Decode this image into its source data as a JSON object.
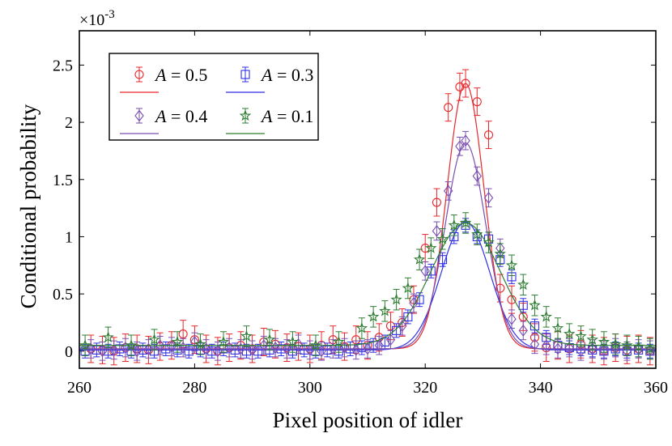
{
  "chart_data": {
    "type": "scatter",
    "xlabel": "Pixel position of idler",
    "ylabel": "Conditional probability",
    "exponent": {
      "base": "×10",
      "power": "-3"
    },
    "xlim": [
      260,
      360
    ],
    "ylim": [
      -0.15,
      2.8
    ],
    "xticks": [
      260,
      280,
      300,
      320,
      340,
      360
    ],
    "xtick_labels": [
      "260",
      "280",
      "300",
      "320",
      "340",
      "360"
    ],
    "yticks": [
      0,
      0.5,
      1,
      1.5,
      2,
      2.5
    ],
    "ytick_labels": [
      "0",
      "0.5",
      "1",
      "1.5",
      "2",
      "2.5"
    ],
    "legend_position": "top-left",
    "series": [
      {
        "name": "A = 0.5",
        "symbol": "A",
        "eq": " = 0.5",
        "color": "#e8262a",
        "marker": "circle",
        "fit": {
          "amplitude": 2.32,
          "center": 327,
          "sigma": 3.2,
          "offset": 0.02
        },
        "x": [
          262,
          264,
          266,
          268,
          270,
          272,
          274,
          276,
          278,
          280,
          282,
          284,
          286,
          288,
          290,
          292,
          294,
          296,
          298,
          300,
          302,
          304,
          306,
          308,
          310,
          312,
          314,
          316,
          318,
          320,
          322,
          324,
          326,
          327,
          329,
          331,
          333,
          335,
          337,
          339,
          341,
          343,
          345,
          347,
          349,
          351,
          353,
          355,
          357,
          359
        ],
        "y": [
          0.02,
          0.01,
          0.0,
          0.03,
          0.02,
          0.01,
          0.04,
          0.05,
          0.15,
          0.1,
          0.02,
          0.0,
          0.03,
          0.05,
          0.02,
          0.08,
          0.06,
          0.03,
          0.04,
          0.02,
          0.05,
          0.1,
          0.04,
          0.1,
          0.05,
          0.12,
          0.22,
          0.25,
          0.45,
          0.9,
          1.3,
          2.13,
          2.31,
          2.34,
          2.18,
          1.89,
          0.55,
          0.45,
          0.3,
          0.12,
          0.03,
          0.05,
          0.02,
          0.06,
          0.02,
          0.0,
          0.03,
          0.01,
          0.02,
          0.0
        ],
        "err": 0.12
      },
      {
        "name": "A = 0.3",
        "symbol": "A",
        "eq": " = 0.3",
        "color": "#2f2fe6",
        "marker": "square",
        "fit": {
          "amplitude": 1.12,
          "center": 327,
          "sigma": 4.2,
          "offset": 0.01
        },
        "x": [
          261,
          263,
          265,
          267,
          269,
          271,
          273,
          275,
          277,
          279,
          281,
          283,
          285,
          287,
          289,
          291,
          293,
          295,
          297,
          299,
          301,
          303,
          305,
          307,
          309,
          311,
          313,
          315,
          317,
          319,
          321,
          323,
          325,
          327,
          329,
          331,
          333,
          335,
          337,
          339,
          341,
          343,
          345,
          347,
          349,
          351,
          353,
          355,
          357,
          359
        ],
        "y": [
          0.0,
          0.01,
          0.0,
          0.02,
          0.0,
          0.01,
          0.0,
          0.02,
          0.01,
          0.0,
          0.01,
          0.0,
          0.02,
          0.01,
          0.0,
          0.0,
          0.01,
          0.02,
          0.0,
          0.01,
          0.0,
          0.01,
          0.0,
          0.02,
          0.03,
          0.05,
          0.08,
          0.18,
          0.3,
          0.45,
          0.7,
          0.8,
          1.0,
          1.1,
          1.0,
          0.98,
          0.8,
          0.65,
          0.4,
          0.22,
          0.12,
          0.05,
          0.03,
          0.02,
          0.01,
          0.0,
          0.02,
          0.0,
          0.01,
          0.0
        ],
        "err": 0.06
      },
      {
        "name": "A = 0.4",
        "symbol": "A",
        "eq": " = 0.4",
        "color": "#7a4fb0",
        "marker": "diamond",
        "fit": {
          "amplitude": 1.8,
          "center": 327,
          "sigma": 3.5,
          "offset": 0.02
        },
        "x": [
          262,
          264,
          266,
          268,
          270,
          272,
          274,
          276,
          278,
          280,
          282,
          284,
          286,
          288,
          290,
          292,
          294,
          296,
          298,
          300,
          302,
          304,
          306,
          308,
          310,
          312,
          314,
          316,
          318,
          320,
          322,
          324,
          326,
          327,
          329,
          331,
          333,
          335,
          337,
          339,
          341,
          343,
          345,
          347,
          349,
          351,
          353,
          355,
          357,
          359
        ],
        "y": [
          0.02,
          0.0,
          0.01,
          0.03,
          0.0,
          0.02,
          0.05,
          0.04,
          0.03,
          0.08,
          0.02,
          0.0,
          0.03,
          0.02,
          0.01,
          0.05,
          0.03,
          0.02,
          0.06,
          0.01,
          0.0,
          0.02,
          0.03,
          0.01,
          0.02,
          0.05,
          0.1,
          0.22,
          0.42,
          0.7,
          1.05,
          1.4,
          1.79,
          1.84,
          1.53,
          1.34,
          0.9,
          0.28,
          0.18,
          0.06,
          0.05,
          0.02,
          0.03,
          0.0,
          0.02,
          0.01,
          0.03,
          0.0,
          0.02,
          0.01
        ],
        "err": 0.08
      },
      {
        "name": "A = 0.1",
        "symbol": "A",
        "eq": " = 0.1",
        "color": "#2e7d32",
        "marker": "star",
        "fit": {
          "amplitude": 1.07,
          "center": 327,
          "sigma": 6.0,
          "offset": 0.05
        },
        "x": [
          261,
          265,
          269,
          273,
          277,
          281,
          285,
          289,
          293,
          297,
          301,
          305,
          309,
          311,
          313,
          315,
          317,
          319,
          321,
          323,
          325,
          327,
          329,
          331,
          333,
          335,
          337,
          339,
          341,
          343,
          345,
          347,
          349,
          351,
          353,
          355,
          357,
          359
        ],
        "y": [
          0.05,
          0.12,
          0.05,
          0.1,
          0.08,
          0.06,
          0.08,
          0.13,
          0.1,
          0.08,
          0.05,
          0.08,
          0.2,
          0.3,
          0.35,
          0.45,
          0.55,
          0.8,
          0.9,
          0.98,
          1.1,
          1.12,
          1.02,
          0.95,
          0.85,
          0.75,
          0.58,
          0.4,
          0.3,
          0.2,
          0.15,
          0.13,
          0.1,
          0.08,
          0.06,
          0.05,
          0.04,
          0.02
        ],
        "err": 0.09
      }
    ]
  }
}
